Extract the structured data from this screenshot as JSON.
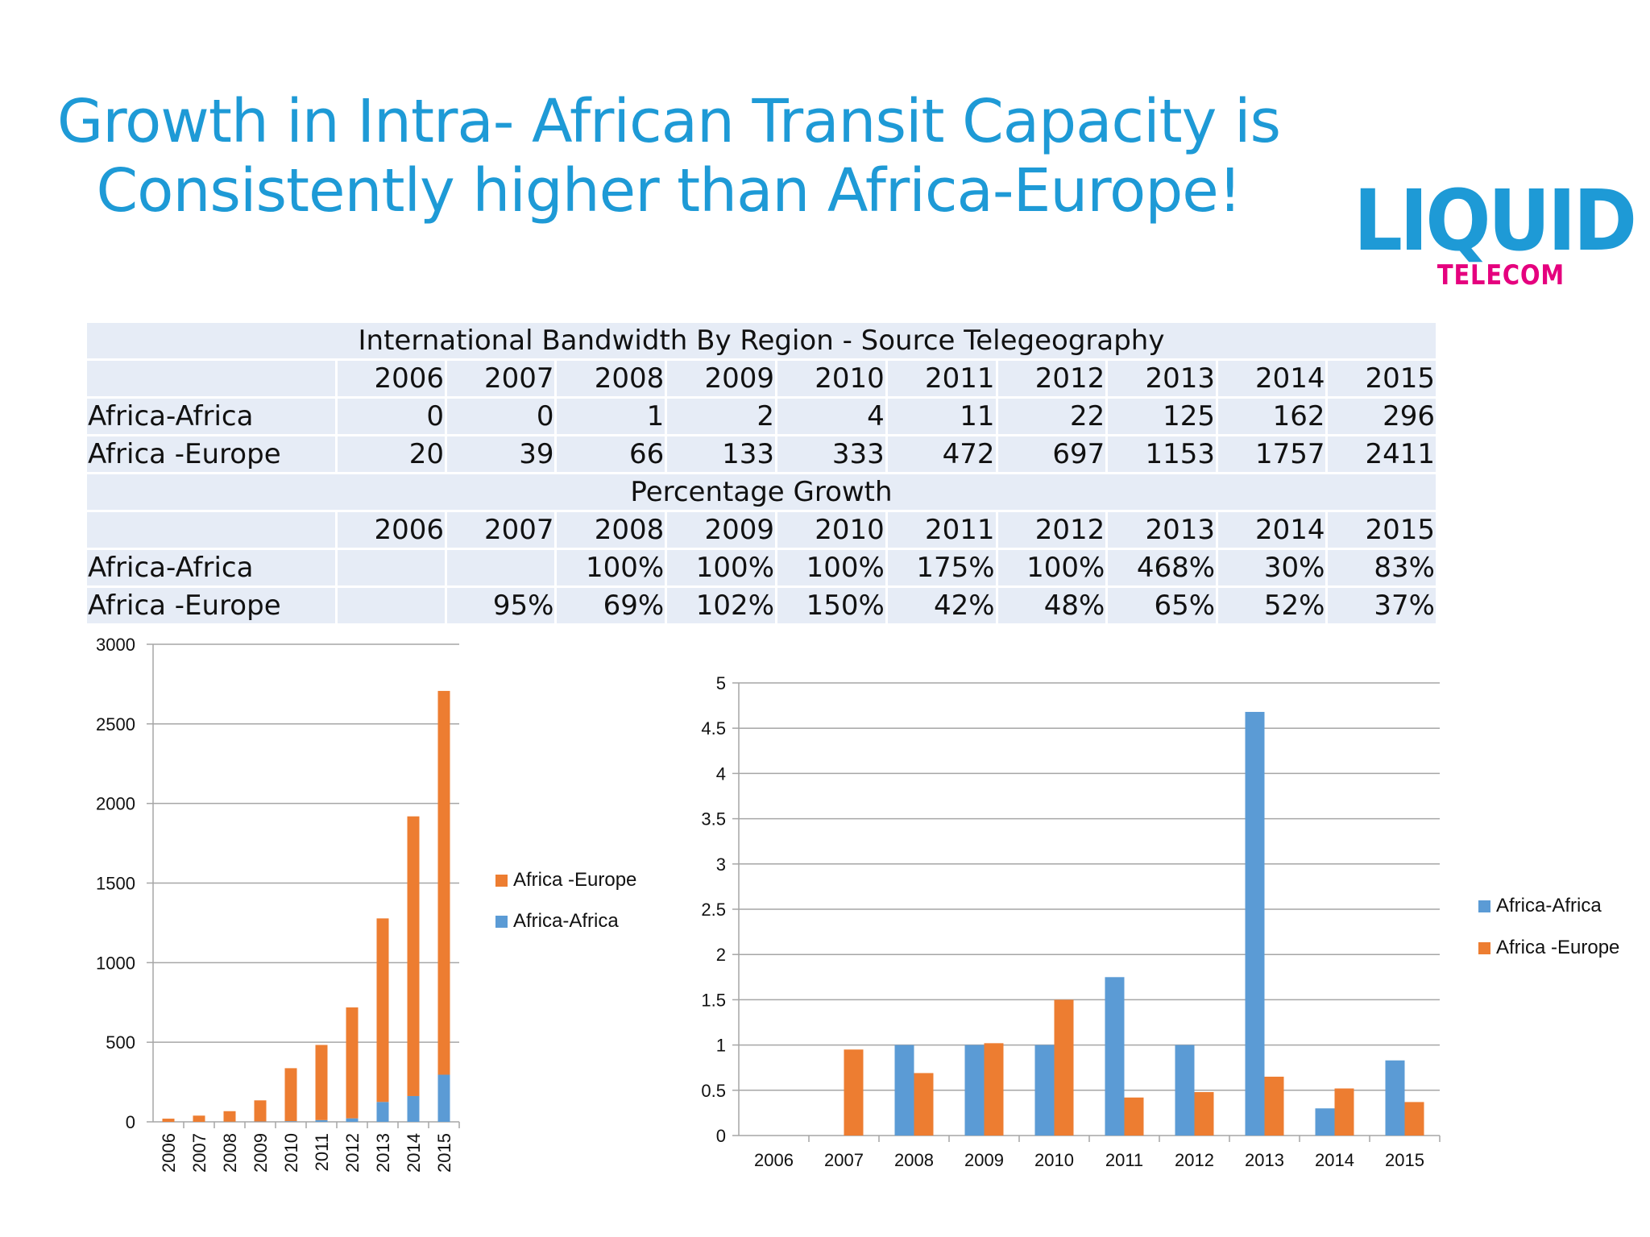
{
  "slide": {
    "title_line1": "Growth in Intra- African Transit Capacity is",
    "title_line2": "Consistently higher than Africa-Europe!"
  },
  "logo": {
    "word": "LIQUID",
    "sub": "TELECOM",
    "colors": {
      "primary": "#1e9ad6",
      "accent": "#e5007e"
    }
  },
  "table": {
    "title": "International Bandwidth By Region - Source Telegeography",
    "years": [
      "2006",
      "2007",
      "2008",
      "2009",
      "2010",
      "2011",
      "2012",
      "2013",
      "2014",
      "2015"
    ],
    "bandwidth_rows": [
      {
        "label": "Africa-Africa",
        "values": [
          "0",
          "0",
          "1",
          "2",
          "4",
          "11",
          "22",
          "125",
          "162",
          "296"
        ]
      },
      {
        "label": "Africa -Europe",
        "values": [
          "20",
          "39",
          "66",
          "133",
          "333",
          "472",
          "697",
          "1153",
          "1757",
          "2411"
        ]
      }
    ],
    "growth_title": "Percentage Growth",
    "growth_rows": [
      {
        "label": "Africa-Africa",
        "values": [
          "",
          "",
          "100%",
          "100%",
          "100%",
          "175%",
          "100%",
          "468%",
          "30%",
          "83%"
        ]
      },
      {
        "label": "Africa -Europe",
        "values": [
          "",
          "95%",
          "69%",
          "102%",
          "150%",
          "42%",
          "48%",
          "65%",
          "52%",
          "37%"
        ]
      }
    ]
  },
  "colors": {
    "africa_africa": "#5b9bd5",
    "africa_europe": "#ed7d31",
    "grid": "#a6a6a6",
    "table_bg": "#e6ecf6"
  },
  "chart_data": [
    {
      "type": "bar",
      "stacked": true,
      "categories": [
        "2006",
        "2007",
        "2008",
        "2009",
        "2010",
        "2011",
        "2012",
        "2013",
        "2014",
        "2015"
      ],
      "series": [
        {
          "name": "Africa-Africa",
          "values": [
            0,
            0,
            1,
            2,
            4,
            11,
            22,
            125,
            162,
            296
          ]
        },
        {
          "name": "Africa -Europe",
          "values": [
            20,
            39,
            66,
            133,
            333,
            472,
            697,
            1153,
            1757,
            2411
          ]
        }
      ],
      "ylim": [
        0,
        3000
      ],
      "yticks": [
        0,
        500,
        1000,
        1500,
        2000,
        2500,
        3000
      ],
      "legend": [
        "Africa -Europe",
        "Africa-Africa"
      ],
      "legend_position": "right",
      "grid": true,
      "xtick_rotation": -90
    },
    {
      "type": "bar",
      "stacked": false,
      "categories": [
        "2006",
        "2007",
        "2008",
        "2009",
        "2010",
        "2011",
        "2012",
        "2013",
        "2014",
        "2015"
      ],
      "series": [
        {
          "name": "Africa-Africa",
          "values": [
            null,
            null,
            1,
            1,
            1,
            1.75,
            1,
            4.68,
            0.3,
            0.83
          ]
        },
        {
          "name": "Africa -Europe",
          "values": [
            null,
            0.95,
            0.69,
            1.02,
            1.5,
            0.42,
            0.48,
            0.65,
            0.52,
            0.37
          ]
        }
      ],
      "ylim": [
        0,
        5
      ],
      "yticks": [
        "0",
        "0.5",
        "1",
        "1.5",
        "2",
        "2.5",
        "3",
        "3.5",
        "4",
        "4.5",
        "5"
      ],
      "legend": [
        "Africa-Africa",
        "Africa -Europe"
      ],
      "legend_position": "right",
      "grid": true
    }
  ]
}
